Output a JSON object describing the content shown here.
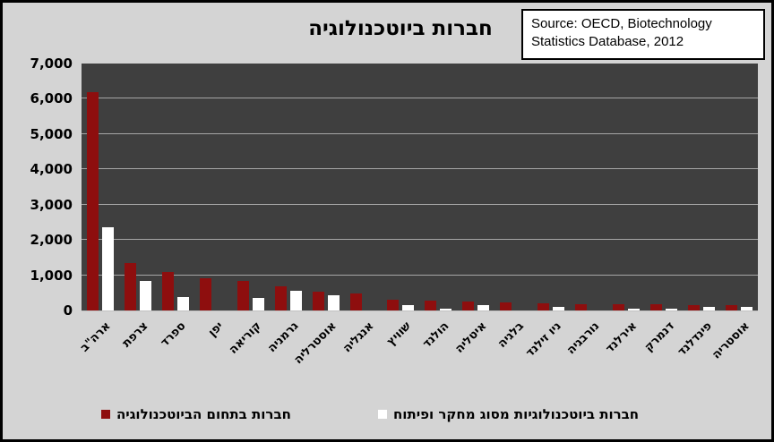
{
  "title": "חברות ביוטכנולוגיה",
  "source_box": {
    "text": "Source: OECD, Biotechnology Statistics Database, 2012"
  },
  "colors": {
    "page_background": "#d4d4d4",
    "plot_background": "#3f3f3f",
    "gridline": "#a6a6a6",
    "bar_red": "#8e0e0e",
    "bar_white": "#ffffff",
    "border": "#000000"
  },
  "chart_data": {
    "type": "bar",
    "title": "חברות ביוטכנולוגיה",
    "direction": "rtl",
    "grid": "horizontal",
    "legend_position": "bottom",
    "ylim": [
      0,
      7000
    ],
    "ytick_step": 1000,
    "ytick_labels": [
      "0",
      "1,000",
      "2,000",
      "3,000",
      "4,000",
      "5,000",
      "6,000",
      "7,000"
    ],
    "categories": [
      "ארה\"ב",
      "צרפת",
      "ספרד",
      "יפן",
      "קוריאה",
      "גרמניה",
      "אוסטרליה",
      "אנגליה",
      "שוויץ",
      "הולנד",
      "איטליה",
      "בלגיה",
      "ניו זילנד",
      "נורבגיה",
      "אירלנד",
      "דנמרק",
      "פינדלנד",
      "אוסטריה"
    ],
    "series": [
      {
        "name": "חברות בתחום הביוטכנולוגיה",
        "color": "#8e0e0e",
        "values": [
          6200,
          1340,
          1100,
          920,
          830,
          680,
          520,
          490,
          300,
          280,
          260,
          230,
          195,
          175,
          190,
          185,
          160,
          150
        ]
      },
      {
        "name": "חברות ביוטכנולוגיות מסוג מחקר ופיתוח",
        "color": "#ffffff",
        "values": [
          2350,
          830,
          390,
          0,
          365,
          550,
          430,
          0,
          150,
          60,
          145,
          0,
          100,
          0,
          60,
          50,
          100,
          100
        ]
      }
    ]
  }
}
